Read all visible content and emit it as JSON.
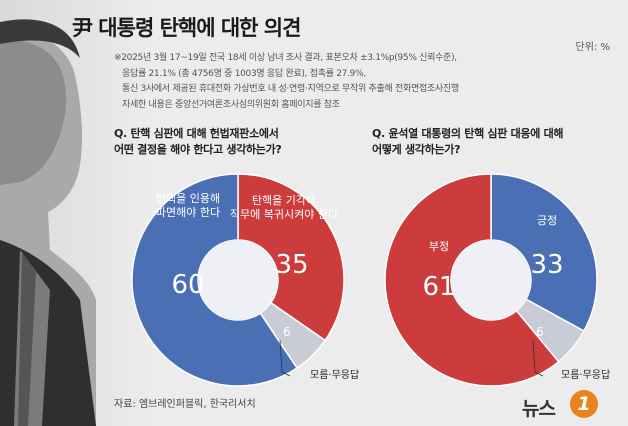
{
  "title": "尹 대통령 탄핵에 대한 의견",
  "unit": "단위: %",
  "notes": [
    "※2025년 3월 17~19일 전국 18세 이상 남녀 조사 결과, 표본오차 ±3.1%p(95% 신뢰수준),",
    "응답률 21.1% (총 4756명 중 1003명 응답 완료), 접촉률 27.9%,",
    "통신 3사에서 제공된 휴대전화 가상번호 내 성·연령·지역으로 무작위 추출해 전화면접조사진행",
    "자세한 내용은 중앙선거여론조사심의위원회 홈페이지를 참조"
  ],
  "source": "자료: 엠브레인퍼블릭, 한국리서치",
  "logo": {
    "text": "뉴스",
    "badge": "1"
  },
  "colors": {
    "blue": "#4a6fb5",
    "red": "#cc3c3d",
    "gray": "#c9cbd6",
    "hole": "#eef0f6"
  },
  "chart_data": [
    {
      "type": "pie",
      "question": [
        "Q. 탄핵 심판에 대해 헌법재판소에서",
        "어떤 결정을 해야 한다고 생각하는가?"
      ],
      "slices": [
        {
          "label": [
            "탄핵을 기각해",
            "직무에 복귀시켜야 한다"
          ],
          "value": 35,
          "color": "#cc3c3d"
        },
        {
          "label": [
            "모름·무응답"
          ],
          "value": 6,
          "color": "#c9cbd6"
        },
        {
          "label": [
            "탄핵을 인용해",
            "파면해야 한다"
          ],
          "value": 60,
          "color": "#4a6fb5"
        }
      ]
    },
    {
      "type": "pie",
      "question": [
        "Q. 윤석열 대통령의 탄핵 심판 대응에 대해",
        "어떻게 생각하는가?"
      ],
      "slices": [
        {
          "label": [
            "긍정"
          ],
          "value": 33,
          "color": "#4a6fb5"
        },
        {
          "label": [
            "모름·무응답"
          ],
          "value": 6,
          "color": "#c9cbd6"
        },
        {
          "label": [
            "부정"
          ],
          "value": 61,
          "color": "#cc3c3d"
        }
      ]
    }
  ]
}
